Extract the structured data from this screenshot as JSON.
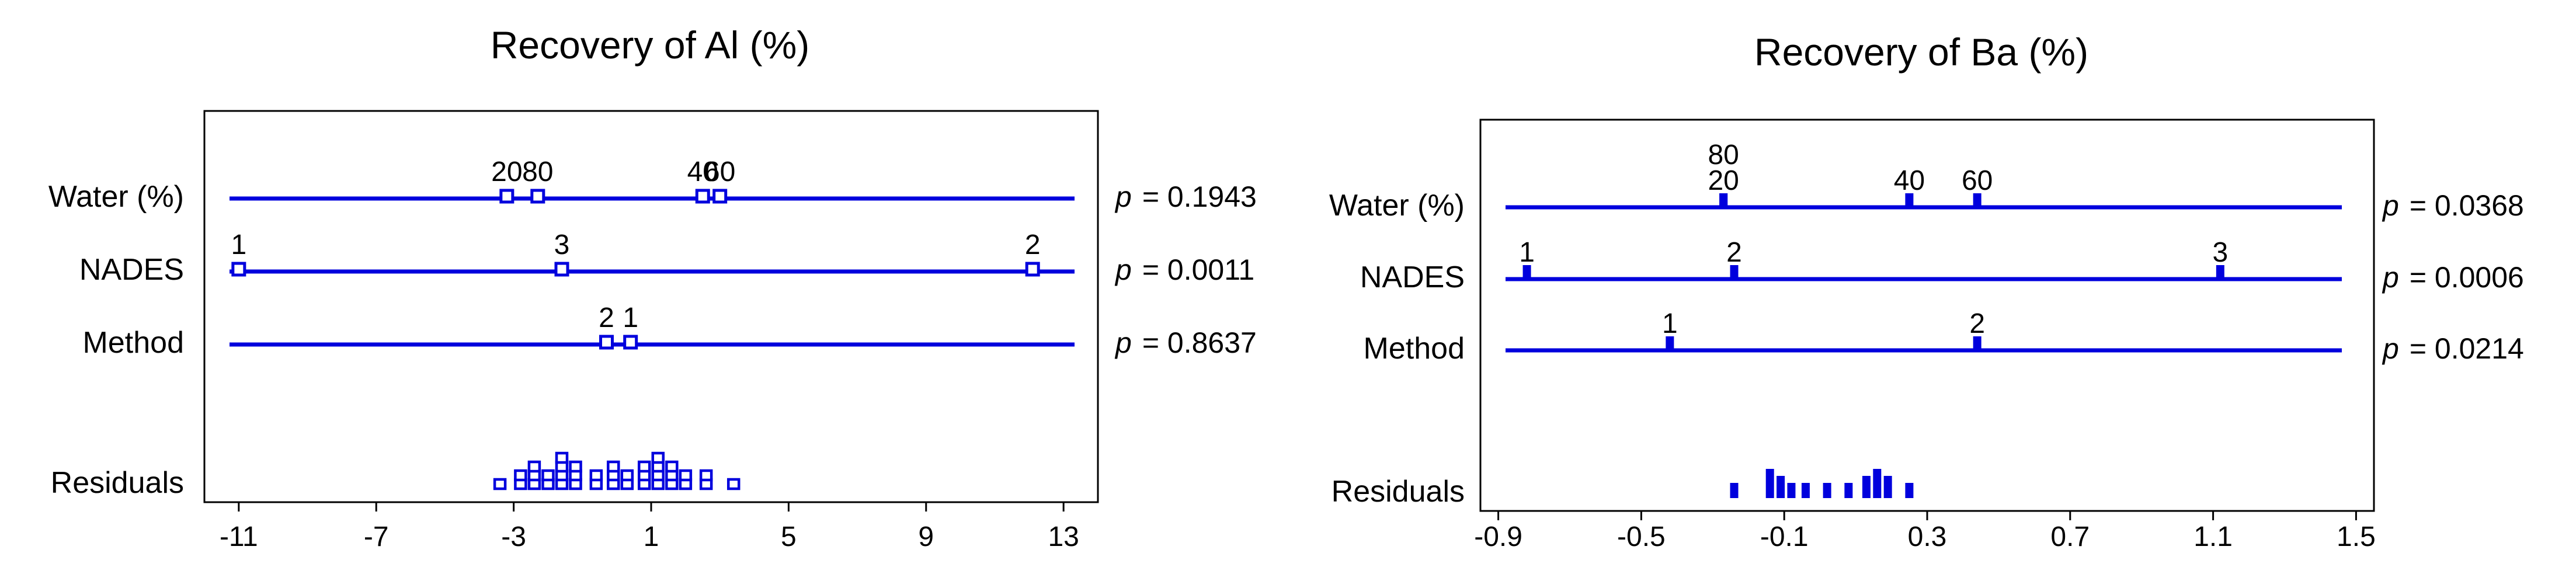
{
  "colors": {
    "line": "#0000dd",
    "frame": "#000000",
    "text": "#000000"
  },
  "chart_data": [
    {
      "type": "anova-dotplot",
      "title": "Recovery of Al (%)",
      "xlim": [
        -12,
        14
      ],
      "xticks": [
        "-11",
        "-7",
        "-3",
        "1",
        "5",
        "9",
        "13"
      ],
      "xtick_values": [
        -11,
        -7,
        -3,
        1,
        5,
        9,
        13
      ],
      "marker": "square",
      "factors": [
        {
          "name": "Water (%)",
          "p_label": "p",
          "p_value": "= 0.1943",
          "levels": [
            {
              "label": "20",
              "value": -3.2
            },
            {
              "label": "80",
              "value": -2.3
            },
            {
              "label": "40",
              "value": 2.5
            },
            {
              "label": "60",
              "value": 3.0
            }
          ]
        },
        {
          "name": "NADES",
          "p_label": "p",
          "p_value": "= 0.0011",
          "levels": [
            {
              "label": "1",
              "value": -11.0
            },
            {
              "label": "3",
              "value": -1.6
            },
            {
              "label": "2",
              "value": 12.1
            }
          ]
        },
        {
          "name": "Method",
          "p_label": "p",
          "p_value": "= 0.8637",
          "levels": [
            {
              "label": "2",
              "value": -0.3
            },
            {
              "label": "1",
              "value": 0.4
            }
          ]
        }
      ],
      "residuals_label": "Residuals",
      "residuals": [
        {
          "value": -3.4,
          "count": 1
        },
        {
          "value": -2.8,
          "count": 2
        },
        {
          "value": -2.4,
          "count": 3
        },
        {
          "value": -2.0,
          "count": 2
        },
        {
          "value": -1.6,
          "count": 4
        },
        {
          "value": -1.2,
          "count": 3
        },
        {
          "value": -0.6,
          "count": 2
        },
        {
          "value": -0.1,
          "count": 3
        },
        {
          "value": 0.3,
          "count": 2
        },
        {
          "value": 0.8,
          "count": 3
        },
        {
          "value": 1.2,
          "count": 4
        },
        {
          "value": 1.6,
          "count": 3
        },
        {
          "value": 2.0,
          "count": 2
        },
        {
          "value": 2.6,
          "count": 2
        },
        {
          "value": 3.4,
          "count": 1
        }
      ]
    },
    {
      "type": "anova-dotplot",
      "title": "Recovery of Ba (%)",
      "xlim": [
        -0.95,
        1.55
      ],
      "xticks": [
        "-0.9",
        "-0.5",
        "-0.1",
        "0.3",
        "0.7",
        "1.1",
        "1.5"
      ],
      "xtick_values": [
        -0.9,
        -0.5,
        -0.1,
        0.3,
        0.7,
        1.1,
        1.5
      ],
      "marker": "bar",
      "factors": [
        {
          "name": "Water (%)",
          "p_label": "p",
          "p_value": "= 0.0368",
          "levels": [
            {
              "label": "80",
              "value": -0.27,
              "stack": 1
            },
            {
              "label": "20",
              "value": -0.27,
              "stack": 0
            },
            {
              "label": "40",
              "value": 0.25,
              "stack": 0
            },
            {
              "label": "60",
              "value": 0.44,
              "stack": 0
            }
          ]
        },
        {
          "name": "NADES",
          "p_label": "p",
          "p_value": "= 0.0006",
          "levels": [
            {
              "label": "1",
              "value": -0.82,
              "stack": 0
            },
            {
              "label": "2",
              "value": -0.24,
              "stack": 0
            },
            {
              "label": "3",
              "value": 1.12,
              "stack": 0
            }
          ]
        },
        {
          "name": "Method",
          "p_label": "p",
          "p_value": "= 0.0214",
          "levels": [
            {
              "label": "1",
              "value": -0.42,
              "stack": 0
            },
            {
              "label": "2",
              "value": 0.44,
              "stack": 0
            }
          ]
        }
      ],
      "residuals_label": "Residuals",
      "residuals": [
        {
          "value": -0.24,
          "count": 1
        },
        {
          "value": -0.14,
          "count": 3
        },
        {
          "value": -0.11,
          "count": 2
        },
        {
          "value": -0.08,
          "count": 1
        },
        {
          "value": -0.04,
          "count": 1
        },
        {
          "value": 0.02,
          "count": 1
        },
        {
          "value": 0.08,
          "count": 1
        },
        {
          "value": 0.13,
          "count": 2
        },
        {
          "value": 0.16,
          "count": 3
        },
        {
          "value": 0.19,
          "count": 2
        },
        {
          "value": 0.25,
          "count": 1
        }
      ]
    }
  ]
}
